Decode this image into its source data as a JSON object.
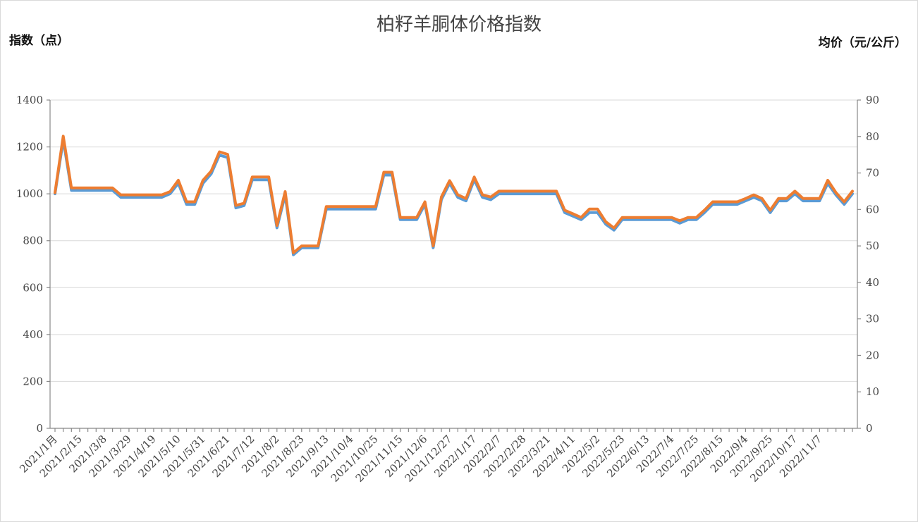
{
  "chart_data": {
    "type": "line",
    "title": "柏籽羊胴体价格指数",
    "ylabel_left": "指数（点）",
    "ylabel_right": "均价（元/公斤）",
    "ylim_left": [
      0,
      1400
    ],
    "ylim_right": [
      0,
      90
    ],
    "yticks_left": [
      "0",
      "200",
      "400",
      "600",
      "800",
      "1000",
      "1200",
      "1400"
    ],
    "yticks_right": [
      "0",
      "10",
      "20",
      "30",
      "40",
      "50",
      "60",
      "70",
      "80",
      "90"
    ],
    "grid": true,
    "x_tick_labels": [
      "2021/1月",
      "2021/2/15",
      "2021/3/8",
      "2021/3/29",
      "2021/4/19",
      "2021/5/10",
      "2021/5/31",
      "2021/6/21",
      "2021/7/12",
      "2021/8/2",
      "2021/8/23",
      "2021/9/13",
      "2021/10/4",
      "2021/10/25",
      "2021/11/15",
      "2021/12/6",
      "2021/12/27",
      "2022/1/17",
      "2022/2/7",
      "2022/2/28",
      "2022/3/21",
      "2022/4/11",
      "2022/5/2",
      "2022/5/23",
      "2022/6/13",
      "2022/7/4",
      "2022/7/25",
      "2022/8/15",
      "2022/9/4",
      "2022/9/25",
      "2022/10/17",
      "2022/11/7"
    ],
    "series": [
      {
        "axis": "left",
        "color": "#5b9bd5",
        "values": [
          1000,
          1230,
          1015,
          1015,
          1015,
          1015,
          1015,
          1015,
          985,
          985,
          985,
          985,
          985,
          985,
          1000,
          1045,
          955,
          955,
          1045,
          1085,
          1165,
          1155,
          940,
          950,
          1060,
          1060,
          1060,
          855,
          995,
          740,
          770,
          770,
          770,
          935,
          935,
          935,
          935,
          935,
          935,
          935,
          1080,
          1080,
          890,
          890,
          890,
          955,
          770,
          975,
          1045,
          985,
          970,
          1060,
          985,
          975,
          1000,
          1000,
          1000,
          1000,
          1000,
          1000,
          1000,
          1000,
          920,
          905,
          890,
          920,
          920,
          870,
          845,
          890,
          890,
          890,
          890,
          890,
          890,
          890,
          875,
          890,
          890,
          920,
          955,
          955,
          955,
          955,
          970,
          985,
          970,
          920,
          970,
          970,
          1000,
          970,
          970,
          970,
          1045,
          995,
          955,
          1000
        ]
      },
      {
        "axis": "right",
        "color": "#ed7d31",
        "values": [
          64.6,
          80.1,
          65.9,
          65.9,
          65.9,
          65.9,
          65.9,
          65.9,
          64,
          64,
          64,
          64,
          64,
          64,
          64.9,
          68,
          62.1,
          62.1,
          68,
          70.5,
          75.8,
          75.1,
          61.1,
          61.7,
          68.9,
          68.9,
          68.9,
          55.6,
          64.9,
          48.1,
          50,
          50,
          50,
          60.8,
          60.8,
          60.8,
          60.8,
          60.8,
          60.8,
          60.8,
          70.2,
          70.2,
          57.8,
          57.8,
          57.8,
          62.1,
          50,
          63.4,
          67.9,
          64,
          63,
          68.9,
          64,
          63.4,
          65,
          65,
          65,
          65,
          65,
          65,
          65,
          65,
          59.8,
          58.8,
          57.8,
          60.1,
          60.1,
          56.6,
          54.9,
          57.8,
          57.8,
          57.8,
          57.8,
          57.8,
          57.8,
          57.8,
          56.9,
          57.8,
          57.8,
          59.8,
          62.1,
          62.1,
          62.1,
          62.1,
          63,
          64,
          63,
          59.8,
          63,
          63,
          65,
          63,
          63,
          63,
          68,
          64.6,
          62.1,
          65
        ]
      }
    ]
  }
}
